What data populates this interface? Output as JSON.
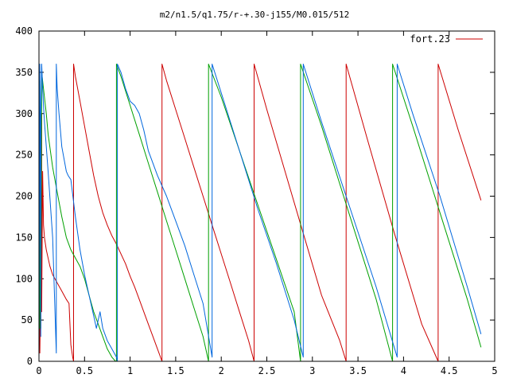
{
  "chart_data": {
    "type": "line",
    "title": "m2/n1.5/q1.75/r-+.30-j155/M0.015/512",
    "xlabel": "",
    "ylabel": "",
    "xlim": [
      0,
      5
    ],
    "ylim": [
      0,
      400
    ],
    "xticks": [
      0,
      0.5,
      1,
      1.5,
      2,
      2.5,
      3,
      3.5,
      4,
      4.5,
      5
    ],
    "xtick_labels": [
      "0",
      "0.5",
      "1",
      "1.5",
      "2",
      "2.5",
      "3",
      "3.5",
      "4",
      "4.5",
      "5"
    ],
    "yticks": [
      0,
      50,
      100,
      150,
      200,
      250,
      300,
      350,
      400
    ],
    "ytick_labels": [
      "0",
      "50",
      "100",
      "150",
      "200",
      "250",
      "300",
      "350",
      "400"
    ],
    "grid": false,
    "legend": {
      "position": "top-right",
      "entries": [
        "fort.23"
      ]
    },
    "series": [
      {
        "name": "fort.23",
        "color": "#cc0000",
        "x": [
          0.0,
          0.01,
          0.01,
          0.02,
          0.02,
          0.03,
          0.03,
          0.04,
          0.05,
          0.06,
          0.08,
          0.1,
          0.12,
          0.15,
          0.2,
          0.25,
          0.3,
          0.33,
          0.35,
          0.37,
          0.38,
          0.38,
          0.4,
          0.45,
          0.5,
          0.55,
          0.6,
          0.65,
          0.7,
          0.75,
          0.8,
          0.85,
          0.9,
          0.95,
          1.0,
          1.05,
          1.1,
          1.15,
          1.2,
          1.25,
          1.3,
          1.35,
          1.35,
          1.4,
          1.5,
          1.6,
          1.7,
          1.8,
          1.9,
          2.0,
          2.1,
          2.2,
          2.3,
          2.36,
          2.36,
          2.5,
          2.7,
          2.9,
          3.1,
          3.3,
          3.37,
          3.37,
          3.6,
          3.9,
          4.2,
          4.38,
          4.38,
          4.6,
          4.85
        ],
        "y": [
          5,
          180,
          10,
          100,
          40,
          300,
          60,
          230,
          165,
          150,
          135,
          125,
          115,
          105,
          95,
          85,
          75,
          70,
          20,
          5,
          0,
          360,
          345,
          315,
          285,
          255,
          225,
          200,
          180,
          165,
          152,
          142,
          130,
          118,
          103,
          90,
          75,
          60,
          45,
          30,
          15,
          0,
          360,
          340,
          305,
          270,
          235,
          200,
          165,
          130,
          95,
          60,
          25,
          0,
          360,
          305,
          230,
          155,
          80,
          25,
          0,
          360,
          270,
          155,
          45,
          0,
          360,
          280,
          195
        ]
      },
      {
        "name": "",
        "color": "#00a000",
        "x": [
          0.0,
          0.01,
          0.01,
          0.02,
          0.02,
          0.03,
          0.05,
          0.08,
          0.1,
          0.15,
          0.2,
          0.25,
          0.3,
          0.35,
          0.4,
          0.45,
          0.5,
          0.55,
          0.6,
          0.65,
          0.7,
          0.75,
          0.8,
          0.84,
          0.85,
          0.85,
          0.9,
          1.0,
          1.1,
          1.2,
          1.3,
          1.4,
          1.5,
          1.6,
          1.7,
          1.8,
          1.86,
          1.86,
          2.0,
          2.2,
          2.4,
          2.6,
          2.8,
          2.87,
          2.87,
          3.1,
          3.4,
          3.7,
          3.88,
          3.88,
          4.1,
          4.4,
          4.7,
          4.85
        ],
        "y": [
          20,
          340,
          40,
          300,
          60,
          350,
          330,
          300,
          275,
          235,
          205,
          175,
          150,
          135,
          125,
          115,
          100,
          80,
          60,
          45,
          30,
          15,
          5,
          0,
          0,
          360,
          345,
          310,
          275,
          240,
          205,
          170,
          135,
          100,
          65,
          30,
          0,
          360,
          320,
          255,
          190,
          125,
          60,
          0,
          360,
          285,
          180,
          75,
          0,
          360,
          285,
          180,
          75,
          17
        ]
      },
      {
        "name": "",
        "color": "#0066dd",
        "x": [
          0.0,
          0.01,
          0.02,
          0.02,
          0.03,
          0.04,
          0.05,
          0.06,
          0.1,
          0.15,
          0.19,
          0.19,
          0.2,
          0.22,
          0.25,
          0.3,
          0.32,
          0.35,
          0.4,
          0.45,
          0.5,
          0.55,
          0.6,
          0.63,
          0.65,
          0.67,
          0.7,
          0.75,
          0.8,
          0.85,
          0.86,
          0.86,
          0.9,
          0.95,
          1.0,
          1.05,
          1.1,
          1.15,
          1.2,
          1.3,
          1.4,
          1.5,
          1.6,
          1.7,
          1.8,
          1.9,
          1.9,
          2.0,
          2.2,
          2.4,
          2.6,
          2.8,
          2.9,
          2.9,
          3.1,
          3.4,
          3.7,
          3.93,
          3.93,
          4.1,
          4.4,
          4.7,
          4.85
        ],
        "y": [
          0,
          360,
          30,
          300,
          360,
          330,
          310,
          290,
          230,
          150,
          10,
          360,
          330,
          300,
          260,
          230,
          225,
          220,
          175,
          135,
          105,
          80,
          55,
          40,
          50,
          60,
          40,
          25,
          15,
          5,
          0,
          360,
          350,
          330,
          315,
          310,
          300,
          280,
          255,
          225,
          200,
          170,
          140,
          105,
          70,
          5,
          360,
          325,
          255,
          185,
          120,
          50,
          5,
          360,
          290,
          190,
          90,
          5,
          360,
          300,
          200,
          90,
          33
        ]
      }
    ]
  }
}
